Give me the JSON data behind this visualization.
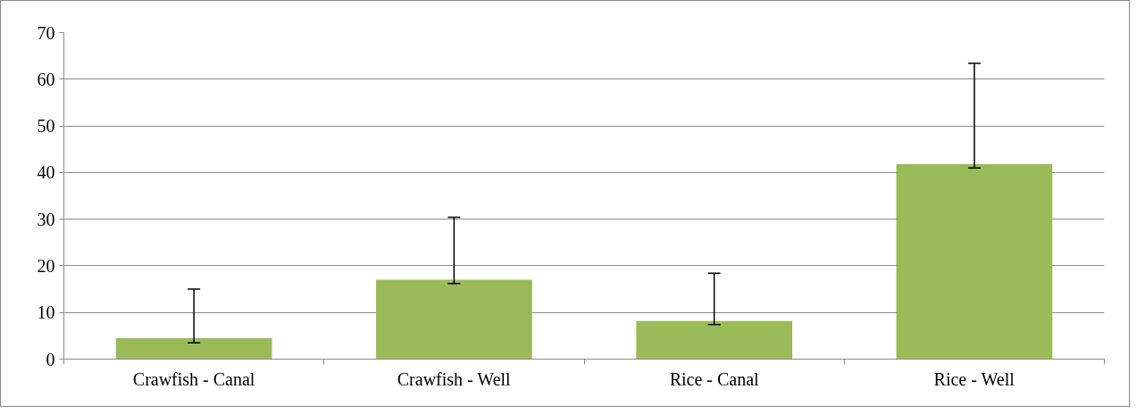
{
  "chart_data": {
    "type": "bar",
    "categories": [
      "Crawfish - Canal",
      "Crawfish - Well",
      "Rice - Canal",
      "Rice - Well"
    ],
    "values": [
      4.5,
      17,
      8.2,
      41.8
    ],
    "errors": [
      [
        3.5,
        15
      ],
      [
        16.2,
        30.4
      ],
      [
        7.4,
        18.4
      ],
      [
        41,
        63.4
      ]
    ],
    "color": "#9bbb59",
    "ylim": [
      0,
      70
    ],
    "yticks": [
      0,
      10,
      20,
      30,
      40,
      50,
      60,
      70
    ],
    "grid": "y"
  }
}
